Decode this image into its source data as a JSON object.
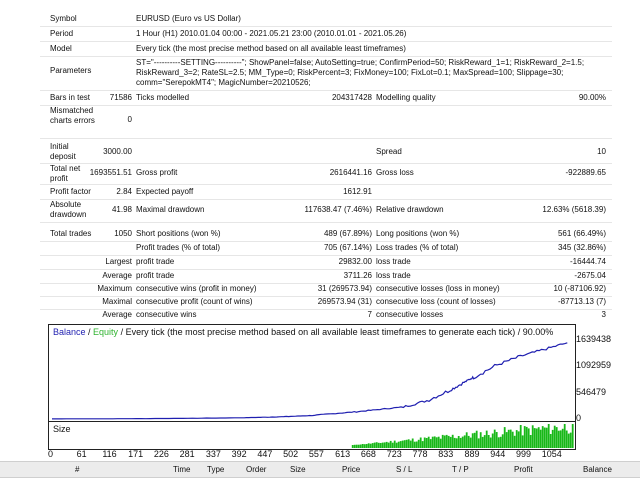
{
  "report": {
    "symbol": {
      "label": "Symbol",
      "value": "EURUSD (Euro vs US Dollar)"
    },
    "period": {
      "label": "Period",
      "value": "1 Hour (H1) 2010.01.04 00:00 - 2021.05.21 23:00 (2010.01.01 - 2021.05.26)"
    },
    "model": {
      "label": "Model",
      "value": "Every tick (the most precise method based on all available least timeframes)"
    },
    "parameters": {
      "label": "Parameters",
      "value": "ST=\"----------SETTING----------\"; ShowPanel=false; AutoSetting=true; ConfirmPeriod=50; RiskReward_1=1; RiskReward_2=1.5; RiskReward_3=2; RateSL=2.5; MM_Type=0; RiskPercent=3; FixMoney=100; FixLot=0.1; MaxSpread=100; Slippage=30; comm=\"SerepokMT4\"; MagicNumber=20210526;"
    },
    "bars": {
      "label": "Bars in test",
      "value": "71586",
      "ticks_label": "Ticks modelled",
      "ticks_value": "204317428",
      "quality_label": "Modelling quality",
      "quality_value": "90.00%"
    },
    "mismatched": {
      "label": "Mismatched charts errors",
      "value": "0"
    },
    "initial": {
      "label": "Initial deposit",
      "value": "3000.00",
      "spread_label": "Spread",
      "spread_value": "10"
    },
    "net": {
      "label": "Total net profit",
      "value": "1693551.51",
      "gp_label": "Gross profit",
      "gp_value": "2616441.16",
      "gl_label": "Gross loss",
      "gl_value": "-922889.65"
    },
    "pf": {
      "label": "Profit factor",
      "value": "2.84",
      "ep_label": "Expected payoff",
      "ep_value": "1612.91"
    },
    "dd": {
      "label": "Absolute drawdown",
      "value": "41.98",
      "md_label": "Maximal drawdown",
      "md_value": "117638.47 (7.46%)",
      "rd_label": "Relative drawdown",
      "rd_value": "12.63% (5618.39)"
    },
    "trades": {
      "label": "Total trades",
      "value": "1050",
      "sp_label": "Short positions (won %)",
      "sp_value": "489 (67.89%)",
      "lp_label": "Long positions (won %)",
      "lp_value": "561 (66.49%)"
    },
    "pt": {
      "l1": "Profit trades (% of total)",
      "v1": "705 (67.14%)",
      "l2": "Loss trades (% of total)",
      "v2": "345 (32.86%)"
    },
    "largest": {
      "pre": "Largest",
      "l1": "profit trade",
      "v1": "29832.00",
      "l2": "loss trade",
      "v2": "-16444.74"
    },
    "average": {
      "pre": "Average",
      "l1": "profit trade",
      "v1": "3711.26",
      "l2": "loss trade",
      "v2": "-2675.04"
    },
    "maximum": {
      "pre": "Maximum",
      "l1": "consecutive wins (profit in money)",
      "v1": "31 (269573.94)",
      "l2": "consecutive losses (loss in money)",
      "v2": "10 (-87106.92)"
    },
    "maximal": {
      "pre": "Maximal",
      "l1": "consecutive profit (count of wins)",
      "v1": "269573.94 (31)",
      "l2": "consecutive loss (count of losses)",
      "v2": "-87713.13 (7)"
    },
    "avgc": {
      "pre": "Average",
      "l1": "consecutive wins",
      "v1": "7",
      "l2": "consecutive losses",
      "v2": "3"
    }
  },
  "chart": {
    "title_balance": "Balance",
    "title_sep": " / ",
    "title_equity": "Equity",
    "title_rest": " / Every tick (the most precise method based on all available least timeframes to generate each tick) / 90.00%",
    "size_label": "Size",
    "colors": {
      "balance": "#1f1fb0",
      "equity": "#2fb32f",
      "volume": "#18b818",
      "border": "#222222"
    }
  },
  "chart_data": {
    "type": "line",
    "title": "",
    "xlabel": "",
    "ylabel": "",
    "x_ticks": [
      "0",
      "61",
      "116",
      "171",
      "226",
      "281",
      "337",
      "392",
      "447",
      "502",
      "557",
      "613",
      "668",
      "723",
      "778",
      "833",
      "889",
      "944",
      "999",
      "1054"
    ],
    "y_ticks": [
      "1639438",
      "1092959",
      "546479",
      "0"
    ],
    "xlim": [
      0,
      1110
    ],
    "ylim": [
      0,
      1700000
    ],
    "series": [
      {
        "name": "Balance",
        "x": [
          0,
          100,
          200,
          300,
          400,
          450,
          500,
          550,
          600,
          650,
          700,
          750,
          800,
          850,
          880,
          900,
          950,
          1000,
          1050,
          1100
        ],
        "values": [
          3000,
          4000,
          8000,
          15000,
          25000,
          35000,
          50000,
          70000,
          110000,
          150000,
          200000,
          250000,
          380000,
          600000,
          760000,
          870000,
          1120000,
          1300000,
          1440000,
          1580000
        ]
      }
    ],
    "volume_start_x": 640,
    "grid": false
  },
  "table": {
    "headers": [
      "#",
      "Time",
      "Type",
      "Order",
      "Size",
      "Price",
      "S / L",
      "T / P",
      "Profit",
      "Balance"
    ]
  }
}
